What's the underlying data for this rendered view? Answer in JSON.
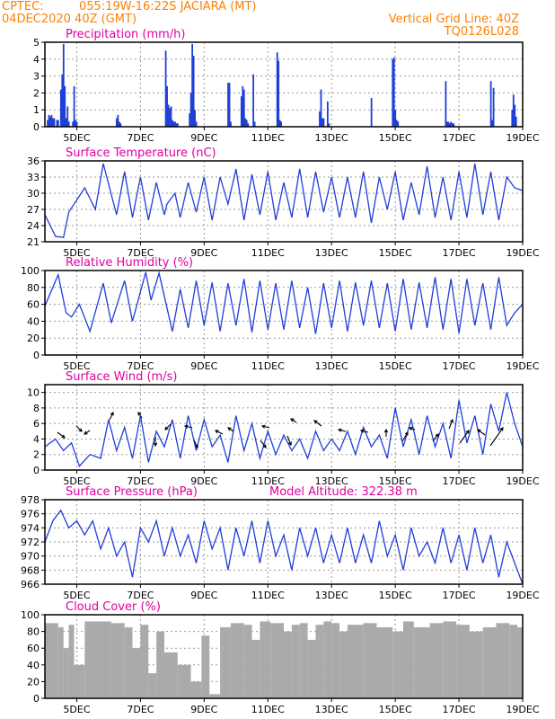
{
  "header": {
    "org": "CPTEC:",
    "location": "055:19W-16:22S  JACIARA (MT)",
    "date": "04DEC2020 40Z (GMT)",
    "grid_note": "Vertical Grid Line: 40Z",
    "code": "TQ0126L028"
  },
  "colors": {
    "header": "#ff8000",
    "title": "#e000a0",
    "line": "#1f3fd8",
    "cloud": "#aaaaaa",
    "grid": "#999999"
  },
  "chart_data": [
    {
      "type": "bar",
      "title": "Precipitation (mm/h)",
      "x_ticks": [
        "5DEC",
        "7DEC",
        "9DEC",
        "11DEC",
        "13DEC",
        "15DEC",
        "17DEC",
        "19DEC"
      ],
      "x_range": [
        0,
        360
      ],
      "ylim": [
        0,
        5
      ],
      "y_ticks": [
        0,
        1,
        2,
        3,
        4,
        5
      ],
      "x": [
        2,
        3,
        4,
        5,
        6,
        7,
        9,
        10,
        12,
        13,
        14,
        15,
        16,
        17,
        18,
        21,
        22,
        23,
        24,
        54,
        55,
        56,
        57,
        91,
        92,
        93,
        94,
        95,
        96,
        97,
        98,
        99,
        100,
        109,
        110,
        111,
        112,
        113,
        114,
        138,
        139,
        140,
        148,
        149,
        150,
        151,
        152,
        153,
        157,
        158,
        175,
        176,
        177,
        178,
        207,
        208,
        209,
        210,
        213,
        214,
        246,
        262,
        263,
        264,
        265,
        266,
        302,
        303,
        304,
        305,
        306,
        307,
        308,
        336,
        337,
        338,
        352,
        353,
        354,
        355
      ],
      "values": [
        0.4,
        0.7,
        0.6,
        0.7,
        0.5,
        0.5,
        0.4,
        0.4,
        2.2,
        3.1,
        4.9,
        2.4,
        0.5,
        1.2,
        0.3,
        0.3,
        2.4,
        0.4,
        0.3,
        0.5,
        0.7,
        0.3,
        0.2,
        4.5,
        2.4,
        1.3,
        1.1,
        1.2,
        0.4,
        0.3,
        0.3,
        0.2,
        0.2,
        0.8,
        2.0,
        4.9,
        4.2,
        1.0,
        0.3,
        2.6,
        2.6,
        0.3,
        1.8,
        2.4,
        2.2,
        0.5,
        0.4,
        0.2,
        3.1,
        0.3,
        4.4,
        3.9,
        0.4,
        0.3,
        0.9,
        2.2,
        0.5,
        0.5,
        1.5,
        0.2,
        1.7,
        4.0,
        4.1,
        1.0,
        0.4,
        0.3,
        2.7,
        0.3,
        0.3,
        0.2,
        0.3,
        0.2,
        0.2,
        2.7,
        0.4,
        2.3,
        1.0,
        1.9,
        1.3,
        0.6
      ]
    },
    {
      "type": "line",
      "title": "Surface Temperature (nC)",
      "x_ticks": [
        "5DEC",
        "7DEC",
        "9DEC",
        "11DEC",
        "13DEC",
        "15DEC",
        "17DEC",
        "19DEC"
      ],
      "x_range": [
        0,
        360
      ],
      "ylim": [
        21,
        36
      ],
      "y_ticks": [
        21,
        24,
        27,
        30,
        33,
        36
      ],
      "x": [
        0,
        8,
        14,
        18,
        30,
        38,
        44,
        54,
        60,
        66,
        72,
        78,
        84,
        90,
        92,
        98,
        102,
        108,
        114,
        120,
        126,
        132,
        138,
        144,
        150,
        156,
        162,
        168,
        174,
        180,
        186,
        192,
        198,
        204,
        210,
        216,
        222,
        228,
        234,
        240,
        246,
        252,
        258,
        264,
        270,
        276,
        282,
        288,
        294,
        300,
        306,
        312,
        318,
        324,
        330,
        336,
        342,
        348,
        354,
        360
      ],
      "values": [
        26,
        22,
        21.8,
        26.5,
        31,
        27,
        35.5,
        26,
        34,
        25.5,
        33,
        25,
        32,
        26,
        28,
        30,
        25.5,
        32,
        26.5,
        33,
        25,
        33,
        28,
        34.5,
        25,
        33.5,
        26,
        34,
        25,
        32,
        25.5,
        34.5,
        25.5,
        34,
        26.5,
        33,
        25.5,
        33,
        25.5,
        34,
        24.5,
        33,
        27,
        34,
        25,
        32,
        26,
        35,
        25.5,
        33,
        25,
        34,
        25.5,
        35.5,
        26,
        34,
        25,
        33,
        31,
        30.5
      ]
    },
    {
      "type": "line",
      "title": "Relative Humidity (%)",
      "x_ticks": [
        "5DEC",
        "7DEC",
        "9DEC",
        "11DEC",
        "13DEC",
        "15DEC",
        "17DEC",
        "19DEC"
      ],
      "x_range": [
        0,
        360
      ],
      "ylim": [
        0,
        100
      ],
      "y_ticks": [
        0,
        20,
        40,
        60,
        80,
        100
      ],
      "x": [
        0,
        10,
        16,
        20,
        26,
        34,
        44,
        50,
        60,
        66,
        76,
        80,
        86,
        96,
        102,
        108,
        114,
        120,
        126,
        132,
        138,
        144,
        150,
        156,
        162,
        168,
        174,
        180,
        186,
        192,
        198,
        204,
        210,
        216,
        222,
        228,
        234,
        240,
        246,
        252,
        258,
        264,
        270,
        276,
        282,
        288,
        294,
        300,
        306,
        312,
        318,
        324,
        330,
        336,
        342,
        348,
        354,
        360
      ],
      "values": [
        58,
        95,
        50,
        45,
        60,
        28,
        85,
        38,
        88,
        40,
        98,
        65,
        97,
        28,
        78,
        32,
        88,
        35,
        86,
        28,
        85,
        35,
        90,
        27,
        88,
        30,
        85,
        30,
        88,
        32,
        80,
        25,
        85,
        32,
        88,
        28,
        86,
        35,
        88,
        32,
        85,
        28,
        90,
        30,
        86,
        32,
        92,
        30,
        90,
        26,
        90,
        35,
        85,
        30,
        92,
        35,
        50,
        60
      ]
    },
    {
      "type": "line",
      "title": "Surface Wind (m/s)",
      "x_ticks": [
        "5DEC",
        "7DEC",
        "9DEC",
        "11DEC",
        "13DEC",
        "15DEC",
        "17DEC",
        "19DEC"
      ],
      "x_range": [
        0,
        360
      ],
      "ylim": [
        0,
        11
      ],
      "y_ticks": [
        0,
        2,
        4,
        6,
        8,
        10
      ],
      "x": [
        0,
        8,
        14,
        20,
        26,
        34,
        42,
        48,
        54,
        60,
        66,
        72,
        78,
        84,
        90,
        96,
        102,
        108,
        114,
        120,
        126,
        132,
        138,
        144,
        150,
        156,
        162,
        168,
        174,
        180,
        186,
        192,
        198,
        204,
        210,
        216,
        222,
        228,
        234,
        240,
        246,
        252,
        258,
        264,
        270,
        276,
        282,
        288,
        294,
        300,
        306,
        312,
        318,
        324,
        330,
        336,
        342,
        348,
        354,
        360
      ],
      "values": [
        3,
        4,
        2.5,
        3.5,
        0.5,
        2,
        1.5,
        6.5,
        2.5,
        5.5,
        1.5,
        7,
        1,
        5,
        3,
        6.5,
        1.5,
        7,
        2.5,
        6.5,
        3,
        4.5,
        1,
        7,
        2.5,
        6,
        1.5,
        5,
        2,
        4.5,
        2.5,
        4,
        1.5,
        5,
        2.5,
        4,
        2.5,
        5,
        2,
        5.5,
        3,
        4.5,
        1.5,
        8,
        3,
        6.5,
        2,
        7,
        3,
        6,
        1.5,
        9,
        3.5,
        7,
        2,
        8.5,
        5,
        10,
        6,
        3
      ]
    },
    {
      "type": "line",
      "title": "Surface Pressure (hPa)",
      "annotation": "Model Altitude: 322.38 m",
      "x_ticks": [
        "5DEC",
        "7DEC",
        "9DEC",
        "11DEC",
        "13DEC",
        "15DEC",
        "17DEC",
        "19DEC"
      ],
      "x_range": [
        0,
        360
      ],
      "ylim": [
        966,
        978
      ],
      "y_ticks": [
        966,
        968,
        970,
        972,
        974,
        976,
        978
      ],
      "x": [
        0,
        6,
        12,
        18,
        24,
        30,
        36,
        42,
        48,
        54,
        60,
        66,
        72,
        78,
        84,
        90,
        96,
        102,
        108,
        114,
        120,
        126,
        132,
        138,
        144,
        150,
        156,
        162,
        168,
        174,
        180,
        186,
        192,
        198,
        204,
        210,
        216,
        222,
        228,
        234,
        240,
        246,
        252,
        258,
        264,
        270,
        276,
        282,
        288,
        294,
        300,
        306,
        312,
        318,
        324,
        330,
        336,
        342,
        348,
        354,
        360
      ],
      "values": [
        972,
        975,
        976.5,
        974,
        975,
        973,
        975,
        971,
        974,
        970,
        972,
        967,
        974,
        972,
        975,
        970,
        974,
        970,
        973,
        969,
        975,
        971,
        974,
        968,
        974,
        970,
        975,
        969,
        975,
        970,
        973,
        968,
        974,
        970,
        974,
        969,
        973,
        969,
        974,
        969,
        973,
        969,
        975,
        970,
        973,
        968,
        974,
        970,
        972,
        969,
        974,
        969,
        973,
        968,
        974,
        969,
        973,
        967,
        972,
        969,
        966
      ]
    },
    {
      "type": "area",
      "title": "Cloud Cover (%)",
      "x_ticks": [
        "5DEC",
        "7DEC",
        "9DEC",
        "11DEC",
        "13DEC",
        "15DEC",
        "17DEC",
        "19DEC"
      ],
      "x_range": [
        0,
        360
      ],
      "ylim": [
        0,
        100
      ],
      "y_ticks": [
        0,
        20,
        40,
        60,
        80,
        100
      ],
      "x": [
        0,
        10,
        14,
        18,
        22,
        30,
        50,
        60,
        66,
        72,
        78,
        84,
        90,
        100,
        110,
        118,
        124,
        132,
        140,
        150,
        156,
        162,
        170,
        180,
        186,
        192,
        198,
        204,
        210,
        216,
        222,
        228,
        240,
        250,
        262,
        270,
        278,
        290,
        300,
        310,
        320,
        330,
        340,
        350,
        356,
        360
      ],
      "values": [
        90,
        85,
        60,
        88,
        40,
        92,
        90,
        85,
        60,
        88,
        30,
        80,
        55,
        40,
        20,
        75,
        5,
        85,
        90,
        88,
        70,
        92,
        90,
        80,
        88,
        90,
        70,
        88,
        92,
        90,
        80,
        88,
        90,
        85,
        80,
        92,
        85,
        90,
        92,
        88,
        80,
        85,
        90,
        88,
        85,
        90
      ]
    }
  ]
}
